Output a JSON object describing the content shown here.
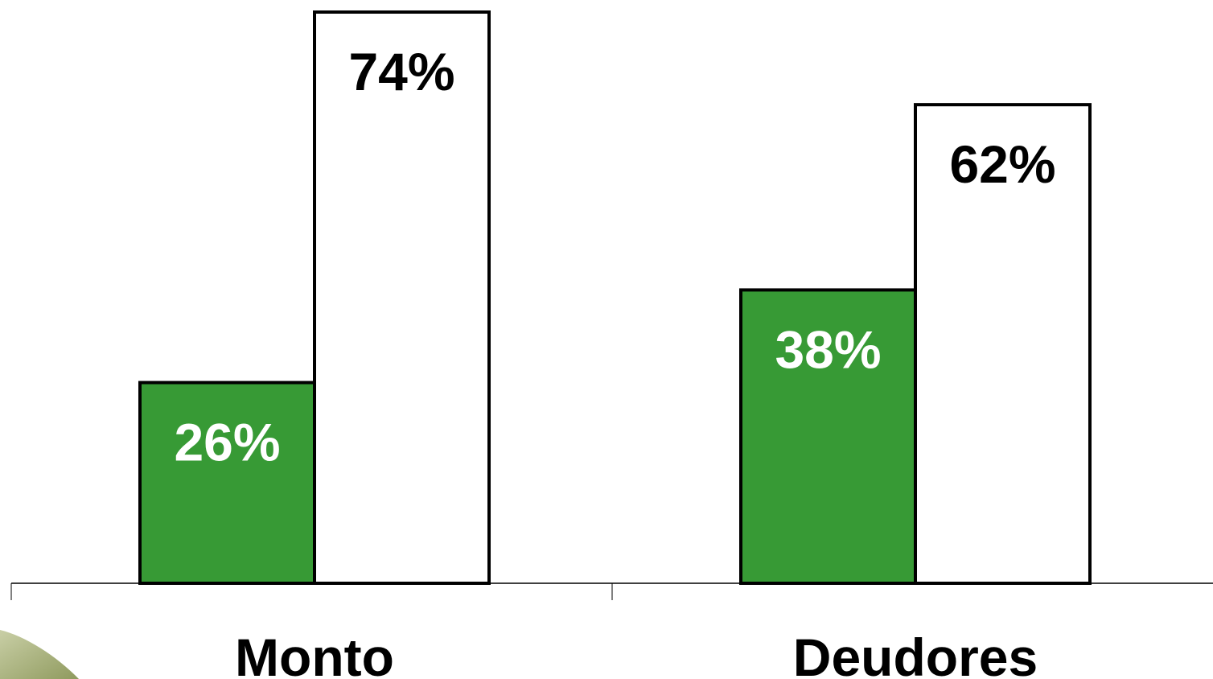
{
  "chart_data": {
    "type": "bar",
    "categories": [
      "Monto",
      "Deudores"
    ],
    "series": [
      {
        "values": [
          26,
          38
        ],
        "labels": [
          "26%",
          "38%"
        ]
      },
      {
        "values": [
          74,
          62
        ],
        "labels": [
          "74%",
          "62%"
        ]
      }
    ],
    "ylim": [
      0,
      74
    ],
    "grid": false,
    "legend": "none",
    "colors": {
      "series_0": "#379a35",
      "series_1": "#ffffff",
      "outline": "#000000",
      "label_on_dark": "#ffffff",
      "label_on_light": "#000000"
    }
  }
}
